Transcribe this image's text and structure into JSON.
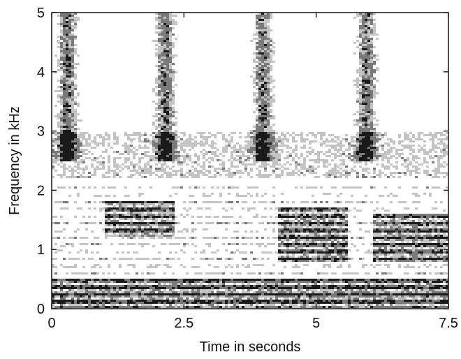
{
  "chart_data": {
    "type": "heatmap",
    "title": "",
    "xlabel": "Time in seconds",
    "ylabel": "Frequency in kHz",
    "xlim": [
      0,
      7.5
    ],
    "ylim": [
      0,
      5
    ],
    "x_ticks": [
      0,
      2.5,
      5,
      7.5
    ],
    "y_ticks": [
      0,
      1,
      2,
      3,
      4,
      5
    ],
    "x_tick_labels": [
      "0",
      "2.5",
      "5",
      "7.5"
    ],
    "y_tick_labels": [
      "0",
      "1",
      "2",
      "3",
      "4",
      "5"
    ],
    "grid": false,
    "colormap": "grayscale (white = low energy, black = high energy)",
    "harmonic_spacing_khz": 0.12,
    "formant_bands": [
      {
        "t_start": 0.0,
        "t_end": 7.5,
        "f_low": 0.0,
        "f_high": 0.5,
        "level": "dark"
      },
      {
        "t_start": 1.0,
        "t_end": 2.3,
        "f_low": 1.2,
        "f_high": 1.8,
        "level": "dark"
      },
      {
        "t_start": 4.3,
        "t_end": 5.6,
        "f_low": 0.8,
        "f_high": 1.7,
        "level": "dark"
      },
      {
        "t_start": 6.1,
        "t_end": 7.5,
        "f_low": 0.8,
        "f_high": 1.6,
        "level": "dark"
      },
      {
        "t_start": 0.0,
        "t_end": 7.5,
        "f_low": 2.2,
        "f_high": 3.0,
        "level": "medium"
      }
    ],
    "vertical_bursts": [
      {
        "time": 0.3,
        "f_low": 2.5,
        "f_high": 5.0
      },
      {
        "time": 2.15,
        "f_low": 2.5,
        "f_high": 5.0
      },
      {
        "time": 4.0,
        "f_low": 2.5,
        "f_high": 5.0
      },
      {
        "time": 5.95,
        "f_low": 2.5,
        "f_high": 5.0
      }
    ]
  },
  "colors": {
    "background": "#ffffff",
    "dark": "#1a1a1a",
    "medium": "#7a7a7a",
    "light": "#c4c4c4",
    "axis": "#222222"
  }
}
